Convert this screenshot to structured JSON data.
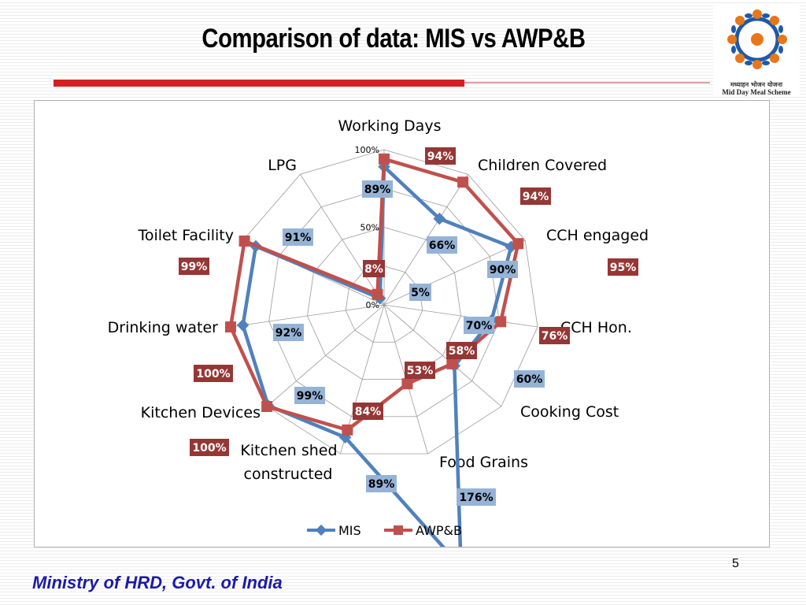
{
  "slide": {
    "title": "Comparison of data: MIS vs AWP&B",
    "page_number": "5",
    "footer": "Ministry of HRD, Govt. of India"
  },
  "logo": {
    "hindi_text": "मध्याहन भोजन योजना",
    "english_text": "Mid Day Meal Scheme"
  },
  "chart_data": {
    "type": "radar",
    "categories": [
      "Working Days",
      "Children Covered",
      "CCH engaged",
      "CCH Hon.",
      "Cooking Cost",
      "Food Grains",
      "Kitchen shed constructed",
      "Kitchen Devices",
      "Drinking water",
      "Toilet Facility",
      "LPG"
    ],
    "radial_ticks": [
      "0%",
      "50%",
      "100%"
    ],
    "range": [
      0,
      100
    ],
    "series": [
      {
        "name": "MIS",
        "color": "#4f81bd",
        "values": [
          89,
          66,
          90,
          70,
          60,
          176,
          89,
          99,
          92,
          91,
          5
        ],
        "labels": [
          "89%",
          "66%",
          "90%",
          "70%",
          "60%",
          "176%",
          "89%",
          "99%",
          "92%",
          "91%",
          "5%"
        ]
      },
      {
        "name": "AWP&B",
        "color": "#c0504d",
        "values": [
          94,
          94,
          95,
          76,
          58,
          53,
          84,
          100,
          100,
          99,
          8
        ],
        "labels": [
          "94%",
          "94%",
          "95%",
          "76%",
          "58%",
          "53%",
          "84%",
          "100%",
          "100%",
          "99%",
          "8%"
        ]
      }
    ],
    "legend": [
      "MIS",
      "AWP&B"
    ],
    "legend_position": "bottom"
  }
}
